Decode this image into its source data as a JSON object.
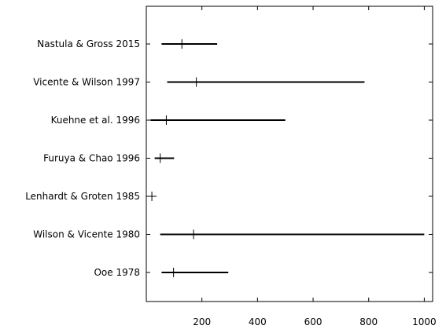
{
  "chart_data": {
    "type": "interval",
    "title": "",
    "xlabel": "",
    "ylabel": "",
    "xlim": [
      0,
      1030
    ],
    "xticks": [
      200,
      400,
      600,
      800,
      1000
    ],
    "xtick_labels": [
      "200",
      "400",
      "600",
      "800",
      "1000"
    ],
    "grid": false,
    "items": [
      {
        "label": "Nastula & Gross 2015",
        "low": 55,
        "high": 255,
        "mark": 128
      },
      {
        "label": "Vicente & Wilson 1997",
        "low": 75,
        "high": 785,
        "mark": 180
      },
      {
        "label": "Kuehne et al. 1996",
        "low": 15,
        "high": 500,
        "mark": 72
      },
      {
        "label": "Furuya & Chao 1996",
        "low": 30,
        "high": 100,
        "mark": 50
      },
      {
        "label": "Lenhardt & Groten 1985",
        "low": 20,
        "high": 20,
        "mark": 20
      },
      {
        "label": "Wilson & Vicente 1980",
        "low": 50,
        "high": 1000,
        "mark": 170
      },
      {
        "label": "Ooe 1978",
        "low": 55,
        "high": 295,
        "mark": 98
      }
    ],
    "colors": {
      "line": "#000000",
      "axis": "#000000"
    }
  }
}
